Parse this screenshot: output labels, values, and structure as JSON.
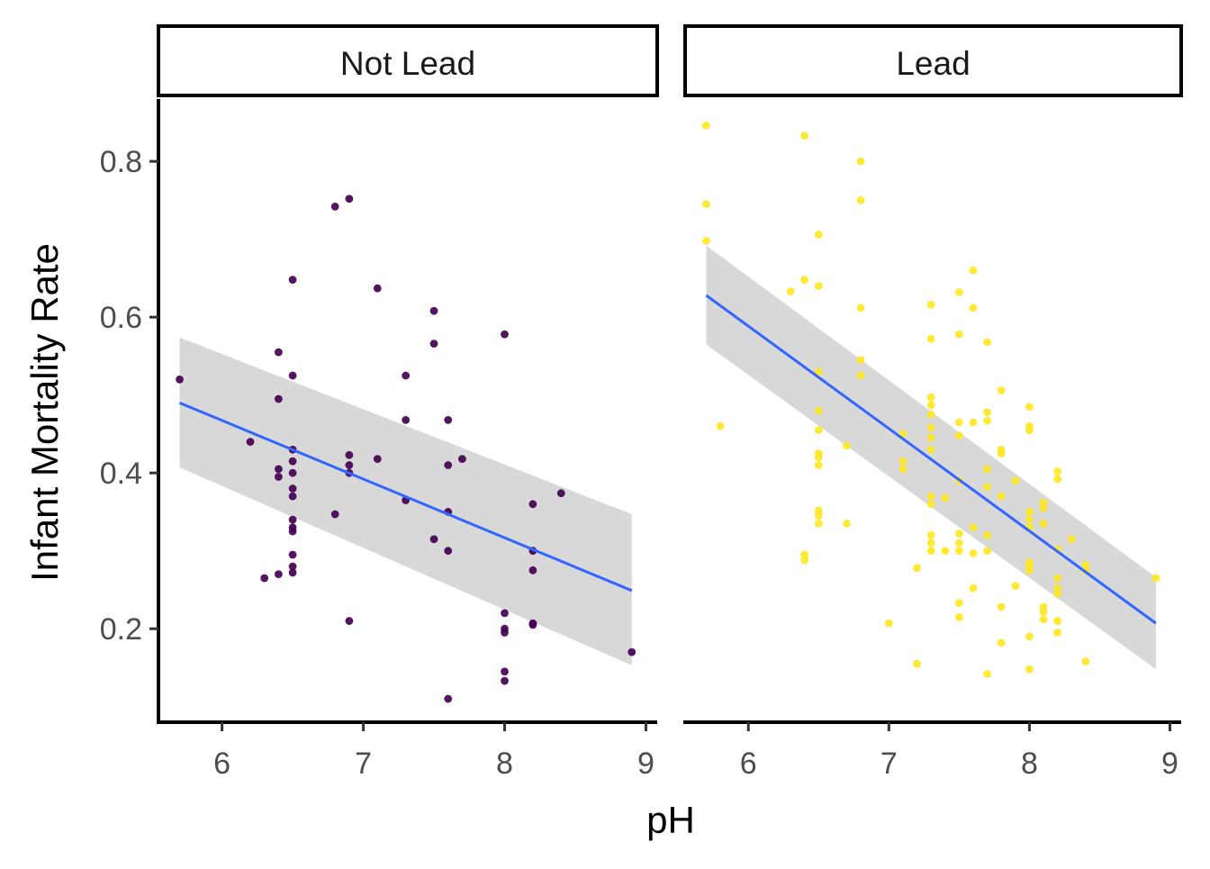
{
  "chart_data": {
    "type": "scatter",
    "xlabel": "pH",
    "ylabel": "Infant Mortality Rate",
    "xlim": [
      5.55,
      9.08
    ],
    "ylim": [
      0.08,
      0.88
    ],
    "x_ticks": [
      6,
      7,
      8,
      9
    ],
    "y_ticks": [
      0.2,
      0.4,
      0.6,
      0.8
    ],
    "grid": false,
    "smooth": {
      "method": "linear fit",
      "line_color": "#3366ff",
      "band_color": "#d4d4d4"
    },
    "panels": [
      {
        "name": "Not Lead",
        "point_color": "#440154",
        "points": [
          [
            5.7,
            0.52
          ],
          [
            6.2,
            0.44
          ],
          [
            6.3,
            0.265
          ],
          [
            6.4,
            0.555
          ],
          [
            6.4,
            0.495
          ],
          [
            6.4,
            0.405
          ],
          [
            6.4,
            0.395
          ],
          [
            6.4,
            0.27
          ],
          [
            6.5,
            0.648
          ],
          [
            6.5,
            0.525
          ],
          [
            6.5,
            0.43
          ],
          [
            6.5,
            0.415
          ],
          [
            6.5,
            0.4
          ],
          [
            6.5,
            0.38
          ],
          [
            6.5,
            0.37
          ],
          [
            6.5,
            0.34
          ],
          [
            6.5,
            0.33
          ],
          [
            6.5,
            0.325
          ],
          [
            6.5,
            0.295
          ],
          [
            6.5,
            0.28
          ],
          [
            6.5,
            0.272
          ],
          [
            6.8,
            0.742
          ],
          [
            6.8,
            0.347
          ],
          [
            6.9,
            0.752
          ],
          [
            6.9,
            0.423
          ],
          [
            6.9,
            0.41
          ],
          [
            6.9,
            0.4
          ],
          [
            6.9,
            0.21
          ],
          [
            7.1,
            0.637
          ],
          [
            7.1,
            0.418
          ],
          [
            7.3,
            0.525
          ],
          [
            7.3,
            0.468
          ],
          [
            7.3,
            0.365
          ],
          [
            7.5,
            0.608
          ],
          [
            7.5,
            0.566
          ],
          [
            7.5,
            0.315
          ],
          [
            7.6,
            0.468
          ],
          [
            7.6,
            0.41
          ],
          [
            7.6,
            0.35
          ],
          [
            7.6,
            0.3
          ],
          [
            7.6,
            0.11
          ],
          [
            7.7,
            0.418
          ],
          [
            8.0,
            0.578
          ],
          [
            8.0,
            0.22
          ],
          [
            8.0,
            0.2
          ],
          [
            8.0,
            0.195
          ],
          [
            8.0,
            0.145
          ],
          [
            8.0,
            0.133
          ],
          [
            8.2,
            0.36
          ],
          [
            8.2,
            0.3
          ],
          [
            8.2,
            0.275
          ],
          [
            8.2,
            0.207
          ],
          [
            8.2,
            0.205
          ],
          [
            8.4,
            0.374
          ],
          [
            8.9,
            0.17
          ]
        ],
        "fit": {
          "x_range": [
            5.7,
            8.9
          ],
          "y_at_start": 0.49,
          "y_at_end": 0.249,
          "band_lower": [
            0.407,
            0.153
          ],
          "band_upper": [
            0.574,
            0.347
          ]
        }
      },
      {
        "name": "Lead",
        "point_color": "#fde725",
        "points": [
          [
            5.7,
            0.846
          ],
          [
            5.7,
            0.745
          ],
          [
            5.7,
            0.698
          ],
          [
            5.8,
            0.46
          ],
          [
            6.3,
            0.633
          ],
          [
            6.4,
            0.833
          ],
          [
            6.4,
            0.648
          ],
          [
            6.4,
            0.295
          ],
          [
            6.4,
            0.288
          ],
          [
            6.5,
            0.706
          ],
          [
            6.5,
            0.64
          ],
          [
            6.5,
            0.53
          ],
          [
            6.5,
            0.48
          ],
          [
            6.5,
            0.455
          ],
          [
            6.5,
            0.425
          ],
          [
            6.5,
            0.42
          ],
          [
            6.5,
            0.41
          ],
          [
            6.5,
            0.352
          ],
          [
            6.5,
            0.345
          ],
          [
            6.5,
            0.335
          ],
          [
            6.7,
            0.435
          ],
          [
            6.7,
            0.335
          ],
          [
            6.8,
            0.8
          ],
          [
            6.8,
            0.75
          ],
          [
            6.8,
            0.612
          ],
          [
            6.8,
            0.545
          ],
          [
            6.8,
            0.525
          ],
          [
            7.0,
            0.207
          ],
          [
            7.1,
            0.45
          ],
          [
            7.1,
            0.415
          ],
          [
            7.1,
            0.405
          ],
          [
            7.2,
            0.278
          ],
          [
            7.2,
            0.155
          ],
          [
            7.3,
            0.616
          ],
          [
            7.3,
            0.572
          ],
          [
            7.3,
            0.497
          ],
          [
            7.3,
            0.487
          ],
          [
            7.3,
            0.475
          ],
          [
            7.3,
            0.458
          ],
          [
            7.3,
            0.445
          ],
          [
            7.3,
            0.43
          ],
          [
            7.3,
            0.37
          ],
          [
            7.3,
            0.36
          ],
          [
            7.3,
            0.32
          ],
          [
            7.3,
            0.31
          ],
          [
            7.3,
            0.3
          ],
          [
            7.4,
            0.368
          ],
          [
            7.4,
            0.3
          ],
          [
            7.5,
            0.632
          ],
          [
            7.5,
            0.578
          ],
          [
            7.5,
            0.465
          ],
          [
            7.5,
            0.448
          ],
          [
            7.5,
            0.39
          ],
          [
            7.5,
            0.322
          ],
          [
            7.5,
            0.31
          ],
          [
            7.5,
            0.3
          ],
          [
            7.5,
            0.233
          ],
          [
            7.5,
            0.215
          ],
          [
            7.6,
            0.66
          ],
          [
            7.6,
            0.612
          ],
          [
            7.6,
            0.465
          ],
          [
            7.6,
            0.33
          ],
          [
            7.6,
            0.297
          ],
          [
            7.6,
            0.252
          ],
          [
            7.7,
            0.568
          ],
          [
            7.7,
            0.478
          ],
          [
            7.7,
            0.467
          ],
          [
            7.7,
            0.405
          ],
          [
            7.7,
            0.382
          ],
          [
            7.7,
            0.32
          ],
          [
            7.7,
            0.3
          ],
          [
            7.7,
            0.142
          ],
          [
            7.8,
            0.506
          ],
          [
            7.8,
            0.43
          ],
          [
            7.8,
            0.425
          ],
          [
            7.8,
            0.37
          ],
          [
            7.8,
            0.228
          ],
          [
            7.8,
            0.182
          ],
          [
            7.9,
            0.39
          ],
          [
            7.9,
            0.255
          ],
          [
            8.0,
            0.485
          ],
          [
            8.0,
            0.46
          ],
          [
            8.0,
            0.455
          ],
          [
            8.0,
            0.35
          ],
          [
            8.0,
            0.34
          ],
          [
            8.0,
            0.33
          ],
          [
            8.0,
            0.285
          ],
          [
            8.0,
            0.28
          ],
          [
            8.0,
            0.275
          ],
          [
            8.0,
            0.19
          ],
          [
            8.0,
            0.148
          ],
          [
            8.1,
            0.362
          ],
          [
            8.1,
            0.355
          ],
          [
            8.1,
            0.335
          ],
          [
            8.1,
            0.228
          ],
          [
            8.1,
            0.222
          ],
          [
            8.1,
            0.212
          ],
          [
            8.2,
            0.402
          ],
          [
            8.2,
            0.392
          ],
          [
            8.2,
            0.302
          ],
          [
            8.2,
            0.265
          ],
          [
            8.2,
            0.252
          ],
          [
            8.2,
            0.245
          ],
          [
            8.2,
            0.21
          ],
          [
            8.2,
            0.195
          ],
          [
            8.3,
            0.315
          ],
          [
            8.4,
            0.282
          ],
          [
            8.4,
            0.275
          ],
          [
            8.4,
            0.158
          ],
          [
            8.9,
            0.265
          ]
        ],
        "fit": {
          "x_range": [
            5.7,
            8.9
          ],
          "y_at_start": 0.628,
          "y_at_end": 0.207,
          "band_lower": [
            0.565,
            0.148
          ],
          "band_upper": [
            0.692,
            0.266
          ]
        }
      }
    ]
  }
}
